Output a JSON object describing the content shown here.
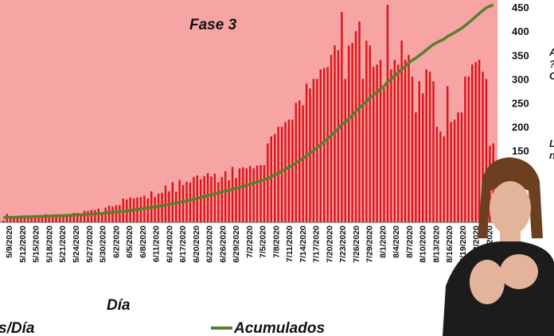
{
  "colors": {
    "background_phase": "#f7a4a4",
    "bars": "#d9161c",
    "line": "#5a7f2c",
    "interpreter_shirt": "#1c1c1c",
    "interpreter_skin": "#e3b49b",
    "interpreter_hair": "#6b3f1f"
  },
  "icons": [
    "sign-language-interpreter-figure"
  ],
  "edge_fragments": [
    "A",
    "?",
    "C",
    "L",
    "n"
  ],
  "chart_data": {
    "type": "bar",
    "title": "Fase 3",
    "xlabel": "Día",
    "ylabel": "",
    "ylim": [
      0,
      465
    ],
    "y_ticks_right": [
      450,
      400,
      350,
      300,
      250,
      200,
      150
    ],
    "x_tick_labels": [
      "5/9/2020",
      "5/12/2020",
      "5/15/2020",
      "5/18/2020",
      "5/21/2020",
      "5/24/2020",
      "5/27/2020",
      "5/30/2020",
      "6/2/2020",
      "6/5/2020",
      "6/8/2020",
      "6/11/2020",
      "6/14/2020",
      "6/17/2020",
      "6/20/2020",
      "6/23/2020",
      "6/26/2020",
      "6/29/2020",
      "7/2/2020",
      "7/5/2020",
      "7/8/2020",
      "7/11/2020",
      "7/14/2020",
      "7/17/2020",
      "7/20/2020",
      "7/23/2020",
      "7/26/2020",
      "7/29/2020",
      "8/1/2020",
      "8/4/2020",
      "8/7/2020",
      "8/10/2020",
      "8/13/2020",
      "8/16/2020",
      "8/19/2020",
      "8/22/2020",
      "8/25/2020"
    ],
    "legend": [
      {
        "label": "Casos/Día",
        "visible_text": "s/Día",
        "kind": "bar"
      },
      {
        "label": "Acumulados",
        "visible_text": "Acumulados",
        "kind": "line"
      }
    ],
    "grid": false,
    "series": [
      {
        "name": "Casos/Día",
        "type": "bar",
        "values": [
          4,
          18,
          13,
          11,
          11,
          13,
          13,
          11,
          10,
          11,
          14,
          14,
          17,
          11,
          14,
          13,
          16,
          13,
          14,
          16,
          20,
          20,
          16,
          24,
          24,
          26,
          26,
          29,
          21,
          31,
          35,
          33,
          36,
          36,
          50,
          48,
          52,
          50,
          52,
          53,
          56,
          50,
          65,
          53,
          60,
          62,
          77,
          65,
          84,
          64,
          89,
          78,
          85,
          83,
          95,
          98,
          90,
          97,
          103,
          96,
          102,
          84,
          95,
          107,
          88,
          116,
          93,
          113,
          115,
          113,
          118,
          113,
          119,
          120,
          120,
          165,
          180,
          185,
          200,
          200,
          210,
          215,
          215,
          250,
          255,
          245,
          290,
          280,
          300,
          300,
          320,
          323,
          325,
          350,
          370,
          360,
          440,
          300,
          370,
          375,
          400,
          420,
          300,
          380,
          370,
          325,
          330,
          340,
          280,
          455,
          320,
          340,
          330,
          380,
          340,
          350,
          305,
          230,
          295,
          270,
          320,
          315,
          295,
          200,
          190,
          180,
          285,
          210,
          215,
          230,
          230,
          305,
          305,
          330,
          335,
          340,
          315,
          300,
          160,
          165
        ]
      },
      {
        "name": "Acumulados",
        "type": "line",
        "start": 10,
        "end": 455
      }
    ]
  }
}
